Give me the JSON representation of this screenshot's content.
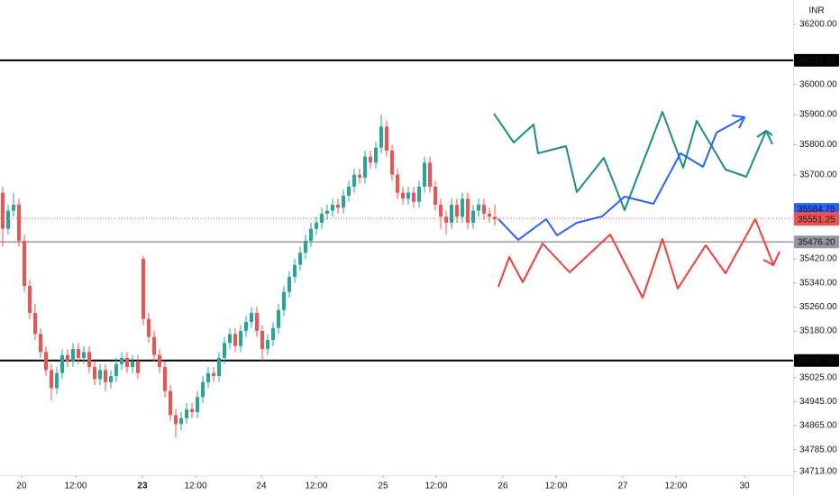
{
  "chart_data": {
    "type": "candlestick",
    "currency": "INR",
    "open": [
      35640,
      35520,
      35580,
      35600,
      35480,
      35330,
      35240,
      35170,
      35110,
      35050,
      34990,
      35040,
      35100,
      35080,
      35120,
      35090,
      35110,
      35060,
      35020,
      35050,
      35010,
      35030,
      35070,
      35090,
      35060,
      35080,
      35420,
      35220,
      35160,
      35100,
      35060,
      34980,
      34900,
      34870,
      34890,
      34920,
      34910,
      34960,
      35010,
      35040,
      35030,
      35090,
      35140,
      35170,
      35130,
      35180,
      35210,
      35240,
      35180,
      35120,
      35150,
      35190,
      35250,
      35310,
      35360,
      35400,
      35440,
      35480,
      35520,
      35540,
      35570,
      35580,
      35600,
      35590,
      35630,
      35660,
      35700,
      35690,
      35760,
      35740,
      35790,
      35860,
      35780,
      35700,
      35640,
      35620,
      35640,
      35610,
      35660,
      35740,
      35660,
      35600,
      35560,
      35540,
      35600,
      35560,
      35620,
      35540,
      35580,
      35600,
      35570,
      35560
    ],
    "high": [
      35660,
      35600,
      35640,
      35620,
      35500,
      35350,
      35270,
      35190,
      35130,
      35070,
      35060,
      35120,
      35120,
      35140,
      35140,
      35130,
      35130,
      35080,
      35070,
      35070,
      35050,
      35090,
      35110,
      35110,
      35100,
      35100,
      35430,
      35240,
      35180,
      35120,
      35080,
      35000,
      34920,
      34910,
      34940,
      34940,
      34980,
      35030,
      35060,
      35060,
      35110,
      35160,
      35190,
      35190,
      35200,
      35230,
      35260,
      35260,
      35200,
      35170,
      35210,
      35270,
      35330,
      35380,
      35420,
      35460,
      35500,
      35540,
      35560,
      35590,
      35600,
      35620,
      35620,
      35650,
      35680,
      35720,
      35720,
      35780,
      35780,
      35810,
      35900,
      35880,
      35800,
      35720,
      35660,
      35660,
      35660,
      35680,
      35760,
      35760,
      35680,
      35620,
      35580,
      35620,
      35620,
      35640,
      35640,
      35600,
      35620,
      35620,
      35590,
      35600
    ],
    "low": [
      35460,
      35500,
      35560,
      35460,
      35310,
      35220,
      35150,
      35090,
      35030,
      34950,
      34970,
      35020,
      35060,
      35060,
      35070,
      35070,
      35040,
      35000,
      35000,
      34980,
      34990,
      35010,
      35050,
      35040,
      35040,
      35020,
      35200,
      35140,
      35080,
      35040,
      34960,
      34880,
      34825,
      34850,
      34870,
      34890,
      34890,
      34940,
      34990,
      35010,
      35010,
      35070,
      35120,
      35110,
      35110,
      35160,
      35190,
      35160,
      35080,
      35100,
      35130,
      35170,
      35230,
      35290,
      35340,
      35380,
      35420,
      35460,
      35500,
      35520,
      35550,
      35560,
      35570,
      35570,
      35610,
      35640,
      35670,
      35670,
      35720,
      35720,
      35770,
      35760,
      35680,
      35620,
      35600,
      35600,
      35590,
      35590,
      35640,
      35640,
      35580,
      35520,
      35500,
      35520,
      35540,
      35540,
      35520,
      35520,
      35560,
      35550,
      35540,
      35530
    ],
    "close": [
      35520,
      35580,
      35600,
      35480,
      35330,
      35240,
      35170,
      35110,
      35050,
      34990,
      35040,
      35100,
      35080,
      35120,
      35090,
      35110,
      35060,
      35020,
      35050,
      35010,
      35030,
      35070,
      35090,
      35060,
      35080,
      35040,
      35220,
      35160,
      35100,
      35060,
      34980,
      34900,
      34870,
      34890,
      34920,
      34910,
      34960,
      35010,
      35040,
      35030,
      35090,
      35140,
      35170,
      35130,
      35180,
      35210,
      35240,
      35180,
      35120,
      35150,
      35190,
      35250,
      35310,
      35360,
      35400,
      35440,
      35480,
      35520,
      35540,
      35570,
      35580,
      35600,
      35590,
      35630,
      35660,
      35700,
      35690,
      35760,
      35740,
      35790,
      35860,
      35780,
      35700,
      35640,
      35620,
      35640,
      35610,
      35660,
      35740,
      35660,
      35600,
      35560,
      35540,
      35600,
      35560,
      35620,
      35540,
      35580,
      35600,
      35570,
      35560,
      35551.25
    ],
    "up_color": "#26a69a",
    "down_color": "#ef5350",
    "grid": false,
    "xlim": [
      -0.5,
      146.17
    ],
    "ylim": [
      34700,
      36281
    ],
    "yticks": [
      {
        "value": 36200,
        "label": "36200.00"
      },
      {
        "value": 36000,
        "label": "36000.00"
      },
      {
        "value": 35900,
        "label": "35900.00"
      },
      {
        "value": 35800,
        "label": "35800.00"
      },
      {
        "value": 35700,
        "label": "35700.00"
      },
      {
        "value": 35420,
        "label": "35420.00"
      },
      {
        "value": 35340,
        "label": "35340.00"
      },
      {
        "value": 35260,
        "label": "35260.00"
      },
      {
        "value": 35180,
        "label": "35180.00"
      },
      {
        "value": 35025,
        "label": "35025.00"
      },
      {
        "value": 34945,
        "label": "34945.00"
      },
      {
        "value": 34865,
        "label": "34865.00"
      },
      {
        "value": 34785,
        "label": "34785.00"
      },
      {
        "value": 34713,
        "label": "34713.00"
      }
    ],
    "xticks": [
      {
        "value": 3.5,
        "label": "20"
      },
      {
        "value": 13.5,
        "label": "12:00"
      },
      {
        "value": 25.83,
        "label": "23"
      },
      {
        "value": 35.67,
        "label": "12:00"
      },
      {
        "value": 47.83,
        "label": "24"
      },
      {
        "value": 58,
        "label": "12:00"
      },
      {
        "value": 70.33,
        "label": "25"
      },
      {
        "value": 80.17,
        "label": "12:00"
      },
      {
        "value": 92.5,
        "label": "26"
      },
      {
        "value": 102.33,
        "label": "12:00"
      },
      {
        "value": 114.67,
        "label": "27"
      },
      {
        "value": 124.5,
        "label": "12:00"
      },
      {
        "value": 137.17,
        "label": "30"
      }
    ],
    "levels": [
      {
        "value": 36080.35,
        "color": "#000000",
        "line": "solid"
      },
      {
        "value": 35584.75,
        "color": "#2962ff",
        "line": "none"
      },
      {
        "value": 35554.65,
        "color": "#ef5350",
        "line": "dotted"
      },
      {
        "value": 35551.25,
        "color": "#ef5350",
        "line": "none"
      },
      {
        "value": 35476.2,
        "label": "35476.20",
        "color": "#9598a1",
        "line": "solid"
      },
      {
        "value": 35081.65,
        "color": "#000000",
        "line": "solid"
      }
    ]
  }
}
